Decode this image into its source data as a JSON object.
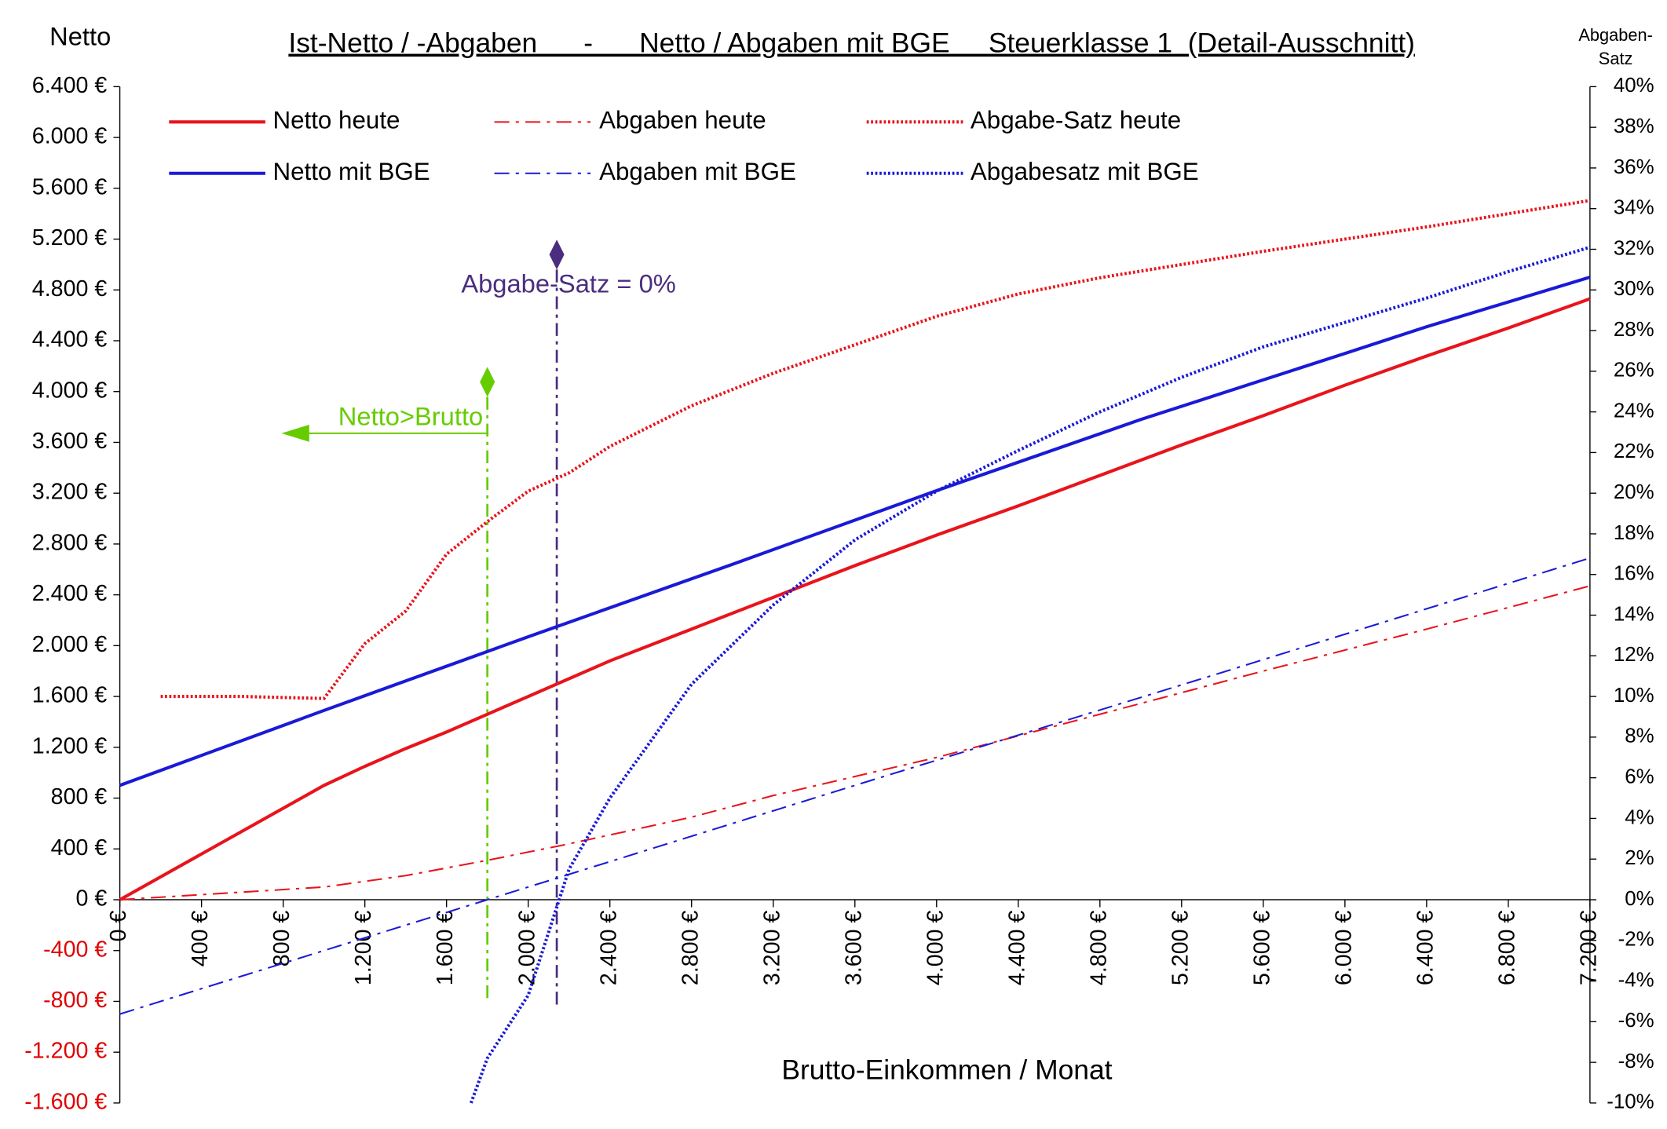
{
  "chart_data": {
    "type": "line",
    "title": "Ist-Netto / -Abgaben      -      Netto / Abgaben mit BGE     Steuerklasse 1  (Detail-Ausschnitt)",
    "ylabel": "Netto",
    "y2label": [
      "Abgaben-",
      "Satz"
    ],
    "xlabel": "Brutto-Einkommen / Monat",
    "xlim": [
      0,
      7200
    ],
    "ylim": [
      -1600,
      6400
    ],
    "y2lim": [
      -10,
      40
    ],
    "negative_tick_color": "#e00000",
    "xticks": [
      {
        "value": 0,
        "label": "0 €"
      },
      {
        "value": 400,
        "label": "400 €"
      },
      {
        "value": 800,
        "label": "800 €"
      },
      {
        "value": 1200,
        "label": "1.200 €"
      },
      {
        "value": 1600,
        "label": "1.600 €"
      },
      {
        "value": 2000,
        "label": "2.000 €"
      },
      {
        "value": 2400,
        "label": "2.400 €"
      },
      {
        "value": 2800,
        "label": "2.800 €"
      },
      {
        "value": 3200,
        "label": "3.200 €"
      },
      {
        "value": 3600,
        "label": "3.600 €"
      },
      {
        "value": 4000,
        "label": "4.000 €"
      },
      {
        "value": 4400,
        "label": "4.400 €"
      },
      {
        "value": 4800,
        "label": "4.800 €"
      },
      {
        "value": 5200,
        "label": "5.200 €"
      },
      {
        "value": 5600,
        "label": "5.600 €"
      },
      {
        "value": 6000,
        "label": "6.000 €"
      },
      {
        "value": 6400,
        "label": "6.400 €"
      },
      {
        "value": 6800,
        "label": "6.800 €"
      },
      {
        "value": 7200,
        "label": "7.200 €"
      }
    ],
    "yticks": [
      {
        "value": 6400,
        "label": "6.400 €"
      },
      {
        "value": 6000,
        "label": "6.000 €"
      },
      {
        "value": 5600,
        "label": "5.600 €"
      },
      {
        "value": 5200,
        "label": "5.200 €"
      },
      {
        "value": 4800,
        "label": "4.800 €"
      },
      {
        "value": 4400,
        "label": "4.400 €"
      },
      {
        "value": 4000,
        "label": "4.000 €"
      },
      {
        "value": 3600,
        "label": "3.600 €"
      },
      {
        "value": 3200,
        "label": "3.200 €"
      },
      {
        "value": 2800,
        "label": "2.800 €"
      },
      {
        "value": 2400,
        "label": "2.400 €"
      },
      {
        "value": 2000,
        "label": "2.000 €"
      },
      {
        "value": 1600,
        "label": "1.600 €"
      },
      {
        "value": 1200,
        "label": "1.200 €"
      },
      {
        "value": 800,
        "label": "800 €"
      },
      {
        "value": 400,
        "label": "400 €"
      },
      {
        "value": 0,
        "label": "0 €"
      },
      {
        "value": -400,
        "label": "-400 €"
      },
      {
        "value": -800,
        "label": "-800 €"
      },
      {
        "value": -1200,
        "label": "-1.200 €"
      },
      {
        "value": -1600,
        "label": "-1.600 €"
      }
    ],
    "y2ticks": [
      {
        "value": 40,
        "label": "40%"
      },
      {
        "value": 38,
        "label": "38%"
      },
      {
        "value": 36,
        "label": "36%"
      },
      {
        "value": 34,
        "label": "34%"
      },
      {
        "value": 32,
        "label": "32%"
      },
      {
        "value": 30,
        "label": "30%"
      },
      {
        "value": 28,
        "label": "28%"
      },
      {
        "value": 26,
        "label": "26%"
      },
      {
        "value": 24,
        "label": "24%"
      },
      {
        "value": 22,
        "label": "22%"
      },
      {
        "value": 20,
        "label": "20%"
      },
      {
        "value": 18,
        "label": "18%"
      },
      {
        "value": 16,
        "label": "16%"
      },
      {
        "value": 14,
        "label": "14%"
      },
      {
        "value": 12,
        "label": "12%"
      },
      {
        "value": 10,
        "label": "10%"
      },
      {
        "value": 8,
        "label": "8%"
      },
      {
        "value": 6,
        "label": "6%"
      },
      {
        "value": 4,
        "label": "4%"
      },
      {
        "value": 2,
        "label": "2%"
      },
      {
        "value": 0,
        "label": "0%"
      },
      {
        "value": -2,
        "label": "-2%"
      },
      {
        "value": -4,
        "label": "-4%"
      },
      {
        "value": -6,
        "label": "-6%"
      },
      {
        "value": -8,
        "label": "-8%"
      },
      {
        "value": -10,
        "label": "-10%"
      }
    ],
    "series": [
      {
        "name": "Netto heute",
        "color": "#e8141c",
        "style": "solid",
        "axis": "y",
        "x": [
          0,
          1000,
          1200,
          1400,
          1600,
          1800,
          2000,
          2400,
          2800,
          3200,
          3600,
          4000,
          4400,
          4800,
          5200,
          5600,
          6000,
          6400,
          6800,
          7200
        ],
        "values": [
          0,
          900,
          1050,
          1190,
          1320,
          1460,
          1600,
          1880,
          2130,
          2380,
          2630,
          2870,
          3100,
          3340,
          3580,
          3810,
          4050,
          4280,
          4500,
          4730
        ]
      },
      {
        "name": "Abgaben heute",
        "color": "#e8141c",
        "style": "dashdot",
        "axis": "y",
        "x": [
          0,
          1000,
          1400,
          1800,
          2200,
          2800,
          3200,
          4000,
          4400,
          4800,
          5600,
          6400,
          7200
        ],
        "values": [
          0,
          100,
          190,
          310,
          440,
          650,
          820,
          1120,
          1290,
          1460,
          1800,
          2130,
          2470
        ]
      },
      {
        "name": "Abgabe-Satz heute",
        "color": "#e8141c",
        "style": "dotted",
        "axis": "y2",
        "x": [
          200,
          600,
          1000,
          1200,
          1400,
          1600,
          1800,
          2000,
          2200,
          2400,
          2800,
          3200,
          3600,
          4000,
          4400,
          4800,
          5600,
          6400,
          7200
        ],
        "values": [
          10,
          10,
          9.9,
          12.6,
          14.2,
          17,
          18.6,
          20.1,
          21,
          22.3,
          24.3,
          25.9,
          27.3,
          28.7,
          29.8,
          30.6,
          31.9,
          33.1,
          34.4
        ]
      },
      {
        "name": "Netto mit BGE",
        "color": "#1a1ad6",
        "style": "solid",
        "axis": "y",
        "x": [
          0,
          1000,
          2000,
          3000,
          4000,
          5000,
          6000,
          6400,
          7200
        ],
        "values": [
          900,
          1490,
          2070,
          2640,
          3220,
          3780,
          4300,
          4510,
          4900
        ]
      },
      {
        "name": "Abgaben mit BGE",
        "color": "#1a1ad6",
        "style": "dashdot",
        "axis": "y",
        "x": [
          0,
          1800,
          3600,
          5400,
          7200
        ],
        "values": [
          -900,
          0,
          900,
          1790,
          2690
        ]
      },
      {
        "name": "Abgabesatz mit BGE",
        "color": "#1a1ad6",
        "style": "dotted",
        "axis": "y2",
        "x": [
          1720,
          1800,
          2000,
          2200,
          2400,
          2800,
          3200,
          3600,
          4000,
          4400,
          4800,
          5200,
          5600,
          6000,
          6400,
          6800,
          7200
        ],
        "values": [
          -10,
          -7.8,
          -4.7,
          1.5,
          5,
          10.6,
          14.5,
          17.7,
          20.1,
          22.1,
          24,
          25.7,
          27.2,
          28.4,
          29.6,
          30.9,
          32.1
        ]
      }
    ],
    "annotations": [
      {
        "text": "Netto>Brutto",
        "x": 1800,
        "color": "#66cc00"
      },
      {
        "text": "Abgabe-Satz = 0%",
        "x": 2140,
        "color": "#4b2d7f"
      }
    ]
  }
}
